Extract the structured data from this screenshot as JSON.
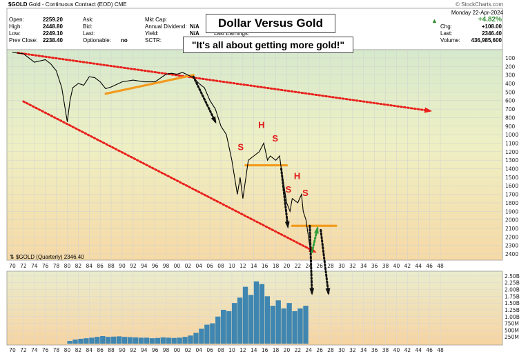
{
  "header": {
    "symbol": "$GOLD",
    "description": "Gold - Continuous Contract (EOD)",
    "exchange": "CME",
    "copyright": "© StockCharts.com",
    "date": "Monday  22-Apr-2024",
    "left_fields": [
      {
        "label": "Open:",
        "value": "2259.20"
      },
      {
        "label": "High:",
        "value": "2448.80"
      },
      {
        "label": "Low:",
        "value": "2249.10"
      },
      {
        "label": "Prev Close:",
        "value": "2238.40"
      }
    ],
    "mid_fields": [
      {
        "label": "Ask:",
        "value": ""
      },
      {
        "label": "Bid:",
        "value": ""
      },
      {
        "label": "Last:",
        "value": ""
      },
      {
        "label": "Optionable:",
        "value": "no"
      }
    ],
    "mid2_fields": [
      {
        "label": "Mkt Cap:",
        "value": ""
      },
      {
        "label": "Annual Dividend:",
        "value": "N/A"
      },
      {
        "label": "Yield:",
        "value": "N/A"
      },
      {
        "label": "SCTR:",
        "value": ""
      }
    ],
    "last_earnings_label": "Last Earnings:",
    "right_fields": [
      {
        "label": "",
        "value": "+4.82%"
      },
      {
        "label": "Chg:",
        "value": "+108.00"
      },
      {
        "label": "Last:",
        "value": "2346.40"
      },
      {
        "label": "Volume:",
        "value": "436,985,600"
      }
    ]
  },
  "annotations": {
    "title": "Dollar Versus Gold",
    "subtitle": "\"It's all about getting more gold!\"",
    "series_label": "$GOLD (Quarterly) 2346.40",
    "hs_letters": [
      "S",
      "H",
      "S",
      "S",
      "H",
      "S"
    ]
  },
  "chart_data": {
    "type": "line",
    "price_axis": {
      "scale": "inverted",
      "ticks": [
        100,
        200,
        300,
        400,
        500,
        600,
        700,
        800,
        900,
        1000,
        1100,
        1200,
        1300,
        1400,
        1500,
        1600,
        1700,
        1800,
        1900,
        2000,
        2100,
        2200,
        2300,
        2400
      ]
    },
    "volume_axis": {
      "ticks": [
        "2.50B",
        "2.25B",
        "2.00B",
        "1.75B",
        "1.50B",
        "1.25B",
        "1.00B",
        "750M",
        "500M",
        "250M"
      ],
      "tick_values": [
        2.5,
        2.25,
        2.0,
        1.75,
        1.5,
        1.25,
        1.0,
        0.75,
        0.5,
        0.25
      ]
    },
    "x_ticks": [
      "70",
      "72",
      "74",
      "76",
      "78",
      "80",
      "82",
      "84",
      "86",
      "88",
      "90",
      "92",
      "94",
      "96",
      "98",
      "00",
      "02",
      "04",
      "06",
      "08",
      "10",
      "12",
      "14",
      "16",
      "18",
      "20",
      "22",
      "24",
      "26",
      "28",
      "30",
      "32",
      "34",
      "36",
      "38",
      "40",
      "42",
      "44",
      "46",
      "48"
    ],
    "price_series": {
      "name": "$GOLD (Quarterly)",
      "x": [
        1970,
        1972,
        1974,
        1976,
        1977,
        1978,
        1979,
        1980,
        1980.5,
        1981,
        1982,
        1983,
        1984,
        1985,
        1986,
        1987,
        1988,
        1990,
        1992,
        1994,
        1996,
        1998,
        1999,
        2000,
        2001,
        2002,
        2003,
        2004,
        2005,
        2006,
        2007,
        2008,
        2009,
        2010,
        2011,
        2011.5,
        2012,
        2013,
        2014,
        2015,
        2015.8,
        2016.5,
        2017,
        2018,
        2018.7,
        2019,
        2020,
        2020.6,
        2021,
        2022,
        2022.7,
        2023,
        2023.5,
        2024.3
      ],
      "y": [
        35,
        50,
        150,
        120,
        170,
        250,
        450,
        850,
        600,
        450,
        400,
        420,
        320,
        330,
        380,
        460,
        440,
        380,
        360,
        380,
        380,
        290,
        280,
        290,
        270,
        300,
        330,
        400,
        450,
        600,
        700,
        900,
        1000,
        1300,
        1700,
        1500,
        1750,
        1300,
        1250,
        1200,
        1100,
        1300,
        1250,
        1300,
        1250,
        1400,
        1800,
        1900,
        1750,
        1800,
        1700,
        1900,
        2000,
        2350
      ]
    },
    "volume_series": {
      "name": "Volume",
      "start_year": 1980,
      "end_year": 2024,
      "values_billions": [
        0.1,
        0.15,
        0.18,
        0.2,
        0.22,
        0.25,
        0.28,
        0.25,
        0.26,
        0.27,
        0.25,
        0.24,
        0.23,
        0.22,
        0.22,
        0.2,
        0.21,
        0.23,
        0.22,
        0.21,
        0.22,
        0.25,
        0.3,
        0.4,
        0.55,
        0.7,
        0.75,
        1.0,
        1.25,
        1.2,
        1.5,
        1.7,
        2.1,
        1.8,
        2.3,
        2.2,
        1.75,
        1.4,
        1.6,
        1.3,
        1.5,
        1.2,
        1.3,
        1.4
      ]
    },
    "trendlines": [
      {
        "id": "upper-red-trendline",
        "color": "#e8201c",
        "from": {
          "x": 1971,
          "y": 40
        },
        "to": {
          "x": 2046,
          "y": 720
        }
      },
      {
        "id": "lower-red-trendline",
        "color": "#e8201c",
        "from": {
          "x": 1972,
          "y": 610
        },
        "to": {
          "x": 2025,
          "y": 2370
        }
      },
      {
        "id": "orange-rising-line",
        "color": "#f39a1e",
        "from": {
          "x": 1987,
          "y": 520
        },
        "to": {
          "x": 2003,
          "y": 300
        }
      },
      {
        "id": "orange-neckline-1",
        "color": "#f39a1e",
        "from": {
          "x": 2012.5,
          "y": 1360
        },
        "to": {
          "x": 2020,
          "y": 1360
        }
      },
      {
        "id": "orange-neckline-2",
        "color": "#f39a1e",
        "from": {
          "x": 2021,
          "y": 2070
        },
        "to": {
          "x": 2029,
          "y": 2070
        }
      }
    ],
    "arrows": [
      {
        "id": "arrow-1",
        "color": "#111111",
        "from": {
          "x": 2003,
          "y": 320
        },
        "to": {
          "x": 2007,
          "y": 850
        }
      },
      {
        "id": "arrow-2",
        "color": "#111111",
        "from": {
          "x": 2019,
          "y": 1400
        },
        "to": {
          "x": 2020.2,
          "y": 2080
        }
      },
      {
        "id": "arrow-3",
        "color": "#111111",
        "from": {
          "x": 2024.2,
          "y": 2070
        },
        "to": {
          "x": 2024.6,
          "y": 3080
        }
      },
      {
        "id": "arrow-4",
        "color": "#111111",
        "from": {
          "x": 2026.2,
          "y": 2120
        },
        "to": {
          "x": 2027.6,
          "y": 3080
        }
      },
      {
        "id": "arrow-green",
        "color": "#2e9e3a",
        "from": {
          "x": 2024.6,
          "y": 2380
        },
        "to": {
          "x": 2025.6,
          "y": 2100
        }
      }
    ],
    "colors": {
      "price_line": "#000000",
      "volume_bars": "#3f86b0",
      "grid": "#d8d8d8",
      "bg_top": "#d8e8c8",
      "bg_bottom": "#f7d6a8",
      "header_up": "#2e8b2e"
    }
  }
}
